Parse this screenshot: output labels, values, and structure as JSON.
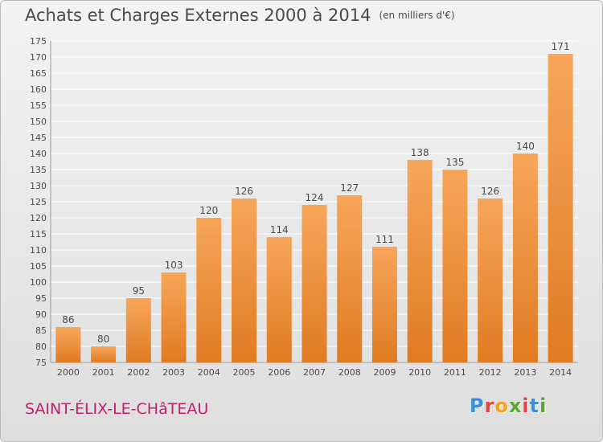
{
  "header": {
    "title": "Achats et Charges Externes 2000 à 2014",
    "unit": "(en milliers d'€)"
  },
  "footer": {
    "commune": "SAINT-ÉLIX-LE-CHâTEAU",
    "logo_letters": [
      "P",
      "r",
      "o",
      "x",
      "i",
      "t",
      "i"
    ],
    "logo_colors": [
      "#3a8fd6",
      "#e8423c",
      "#f5a11c",
      "#5aa832",
      "#e8423c",
      "#3a8fd6",
      "#5aa832"
    ]
  },
  "colors": {
    "bar_top": "#f7a65a",
    "bar_bottom": "#e07b22",
    "grid": "#ffffff",
    "axis_text": "#4a4a4a"
  },
  "chart_data": {
    "type": "bar",
    "categories": [
      "2000",
      "2001",
      "2002",
      "2003",
      "2004",
      "2005",
      "2006",
      "2007",
      "2008",
      "2009",
      "2010",
      "2011",
      "2012",
      "2013",
      "2014"
    ],
    "values": [
      86,
      80,
      95,
      103,
      120,
      126,
      114,
      124,
      127,
      111,
      138,
      135,
      126,
      140,
      171
    ],
    "ylim": [
      75,
      175
    ],
    "ytick_step": 5,
    "grid": true,
    "data_labels": true
  }
}
